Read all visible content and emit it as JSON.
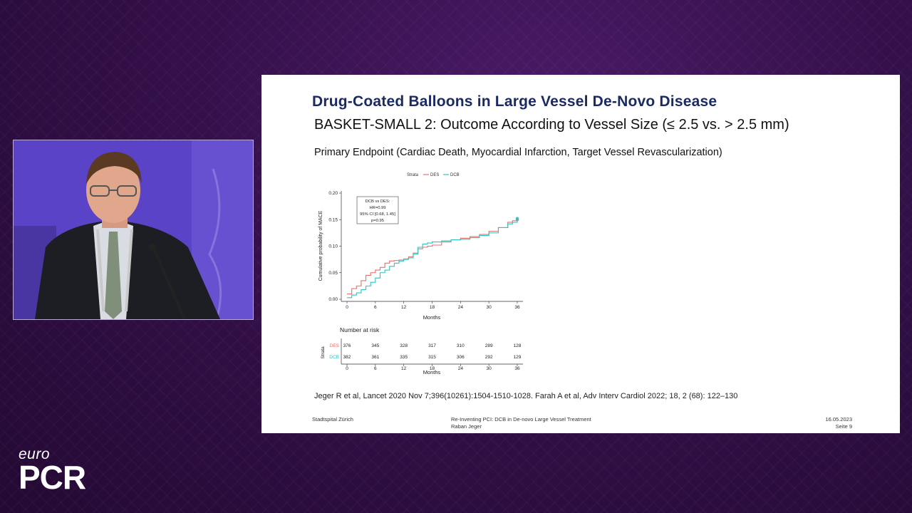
{
  "logo": {
    "euro": "euro",
    "pcr": "PCR"
  },
  "slide": {
    "title": "Drug-Coated Balloons in Large Vessel De-Novo Disease",
    "subtitle": "BASKET-SMALL 2: Outcome According to Vessel Size (≤ 2.5 vs. > 2.5 mm)",
    "endpoint": "Primary Endpoint (Cardiac Death, Myocardial Infarction, Target Vessel Revascularization)",
    "reference": "Jeger R et al,  Lancet 2020 Nov 7;396(10261):1504-1510-1028. Farah A et al, Adv Interv Cardiol 2022; 18, 2 (68): 122–130",
    "footer": {
      "left": "Stadtspital Zürich",
      "center_line1": "Re-Inventing PCI: DCB in De-novo Large Vessel Treatment",
      "center_line2": "Raban Jeger",
      "right_line1": "16.05.2023",
      "right_line2": "Seite 9"
    }
  },
  "chart_data": {
    "type": "line",
    "legend_title": "Strata",
    "legend_position": "top",
    "ylabel": "Cumulative probability of MACE",
    "xlabel": "Months",
    "xlim": [
      0,
      36
    ],
    "ylim": [
      0,
      0.2
    ],
    "x_ticks": [
      0,
      6,
      12,
      18,
      24,
      30,
      36
    ],
    "y_ticks": [
      "0.00",
      "0.05",
      "0.10",
      "0.15",
      "0.20"
    ],
    "annotation": [
      "DCB vs DES:",
      "HR=0.99",
      "95% CI [0.68, 1.45]",
      "p=0.95"
    ],
    "series": [
      {
        "name": "DES",
        "color": "#e8716c",
        "x": [
          0,
          1,
          2,
          3,
          4,
          5,
          6,
          7,
          8,
          9,
          10,
          11,
          12,
          13,
          14,
          15,
          16,
          17,
          18,
          20,
          22,
          24,
          26,
          28,
          30,
          32,
          34,
          35,
          36
        ],
        "y": [
          0.01,
          0.02,
          0.025,
          0.035,
          0.045,
          0.05,
          0.055,
          0.06,
          0.068,
          0.072,
          0.073,
          0.074,
          0.076,
          0.08,
          0.087,
          0.095,
          0.098,
          0.1,
          0.102,
          0.108,
          0.112,
          0.115,
          0.118,
          0.122,
          0.128,
          0.135,
          0.145,
          0.148,
          0.15
        ]
      },
      {
        "name": "DCB",
        "color": "#2ec4c0",
        "x": [
          0,
          1,
          2,
          3,
          4,
          5,
          6,
          7,
          8,
          9,
          10,
          11,
          12,
          13,
          14,
          15,
          16,
          17,
          18,
          20,
          22,
          24,
          26,
          28,
          30,
          32,
          34,
          35,
          36
        ],
        "y": [
          0.003,
          0.008,
          0.012,
          0.018,
          0.025,
          0.032,
          0.04,
          0.05,
          0.055,
          0.062,
          0.068,
          0.072,
          0.075,
          0.078,
          0.085,
          0.098,
          0.104,
          0.106,
          0.108,
          0.11,
          0.112,
          0.113,
          0.116,
          0.12,
          0.125,
          0.135,
          0.142,
          0.145,
          0.152
        ]
      }
    ],
    "risk_table": {
      "title": "Number at risk",
      "strata_label": "Strata",
      "xlabel": "Months",
      "rows": [
        {
          "name": "DES",
          "color": "#e8716c",
          "values": [
            "376",
            "345",
            "328",
            "317",
            "310",
            "289",
            "128"
          ]
        },
        {
          "name": "DCB",
          "color": "#2ec4c0",
          "values": [
            "382",
            "361",
            "335",
            "315",
            "306",
            "292",
            "129"
          ]
        }
      ]
    }
  }
}
